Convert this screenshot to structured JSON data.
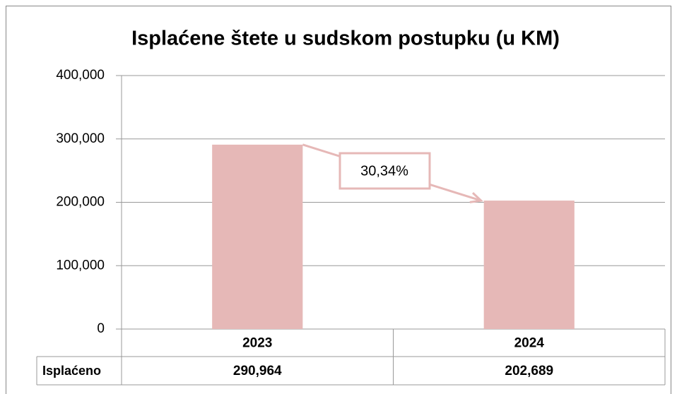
{
  "chart_data": {
    "type": "bar",
    "title": "Isplaćene štete u sudskom postupku  (u KM)",
    "categories": [
      "2023",
      "2024"
    ],
    "series": [
      {
        "name": "Isplaćeno",
        "color": "#e6b8b7",
        "values": [
          290964,
          202689
        ],
        "value_labels": [
          "290,964",
          "202,689"
        ]
      }
    ],
    "ylim": [
      0,
      400000
    ],
    "yticks": [
      0,
      {
        "value": 100000,
        "label": "100,000"
      },
      {
        "value": 200000,
        "label": "200,000"
      },
      {
        "value": 300000,
        "label": "300,000"
      },
      {
        "value": 400000,
        "label": "400,000"
      }
    ],
    "grid": true,
    "annotations": [
      "30,34%"
    ]
  }
}
